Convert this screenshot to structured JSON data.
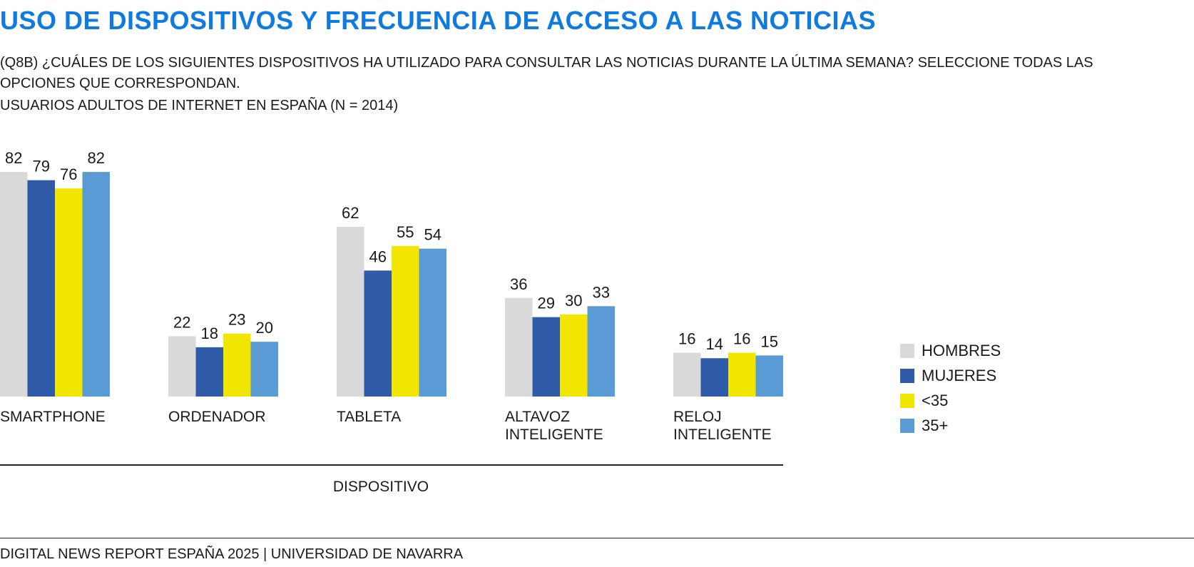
{
  "header": {
    "title": "USO DE DISPOSITIVOS Y FRECUENCIA DE ACCESO A LAS NOTICIAS",
    "question": "(Q8B) ¿CUÁLES DE LOS SIGUIENTES DISPOSITIVOS HA UTILIZADO PARA CONSULTAR LAS NOTICIAS  DURANTE LA ÚLTIMA SEMANA? SELECCIONE TODAS LAS OPCIONES QUE CORRESPONDAN.",
    "sample": "USUARIOS ADULTOS DE INTERNET EN ESPAÑA (N = 2014)"
  },
  "footer": {
    "source": "DIGITAL NEWS REPORT ESPAÑA 2025 | UNIVERSIDAD DE NAVARRA"
  },
  "chart_data": {
    "type": "bar",
    "categories": [
      "SMARTPHONE",
      "ORDENADOR",
      "TABLETA",
      "ALTAVOZ INTELIGENTE",
      "RELOJ INTELIGENTE"
    ],
    "category_lines": [
      [
        "SMARTPHONE"
      ],
      [
        "ORDENADOR"
      ],
      [
        "TABLETA"
      ],
      [
        "ALTAVOZ",
        "INTELIGENTE"
      ],
      [
        "RELOJ",
        "INTELIGENTE"
      ]
    ],
    "series": [
      {
        "name": "HOMBRES",
        "color": "#d9d9d9",
        "values": [
          82,
          22,
          62,
          36,
          16
        ]
      },
      {
        "name": "MUJERES",
        "color": "#2e5aa8",
        "values": [
          79,
          18,
          46,
          29,
          14
        ]
      },
      {
        "name": "<35",
        "color": "#f2e600",
        "values": [
          76,
          23,
          55,
          30,
          16
        ]
      },
      {
        "name": "35+",
        "color": "#5b9bd5",
        "values": [
          82,
          20,
          54,
          33,
          15
        ]
      }
    ],
    "xlabel": "DISPOSITIVO",
    "ylabel": "",
    "ylim": [
      0,
      100
    ],
    "grid": false,
    "legend_position": "right"
  }
}
